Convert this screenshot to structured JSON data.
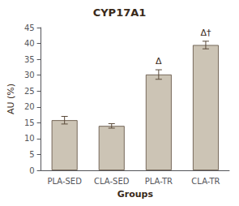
{
  "chart_data": {
    "type": "bar",
    "title": "CYP17A1",
    "categories": [
      "PLA-SED",
      "CLA-SED",
      "PLA-TR",
      "CLA-TR"
    ],
    "values": [
      15.8,
      14.0,
      30.2,
      39.5
    ],
    "errors": [
      1.2,
      0.7,
      1.5,
      1.2
    ],
    "color": "#ccc4b5",
    "xlabel": "Groups",
    "ylabel": "AU (%)",
    "ylim": [
      0,
      45
    ],
    "yticks": [
      0,
      5,
      10,
      15,
      20,
      25,
      30,
      35,
      40,
      45
    ],
    "annotations": [
      {
        "category": "PLA-TR",
        "text": "Δ"
      },
      {
        "category": "CLA-TR",
        "text": "Δ†"
      }
    ],
    "grid": false
  }
}
